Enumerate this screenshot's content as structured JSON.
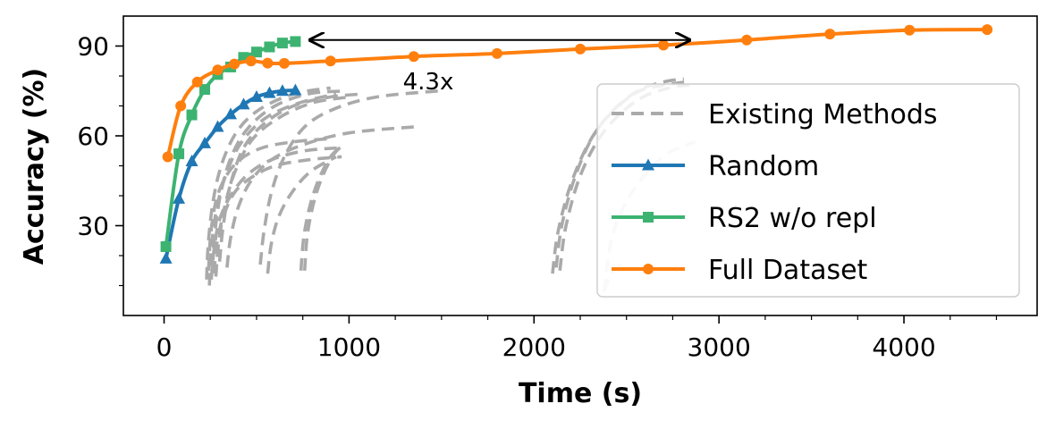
{
  "chart_data": {
    "type": "line",
    "xlabel": "Time (s)",
    "ylabel": "Accuracy (%)",
    "xlim": [
      -220,
      4720
    ],
    "ylim": [
      0,
      100
    ],
    "xticks": [
      "0",
      "1000",
      "2000",
      "3000",
      "4000"
    ],
    "xtick_values": [
      0,
      1000,
      2000,
      3000,
      4000
    ],
    "yticks": [
      "30",
      "60",
      "90"
    ],
    "ytick_values": [
      30,
      60,
      90
    ],
    "legend_position": "right",
    "annotation": {
      "text": "4.3x",
      "from": [
        790,
        92
      ],
      "to": [
        2840,
        92
      ]
    },
    "series": [
      {
        "name": "Full Dataset",
        "color": "#ff7f0e",
        "marker": "circle",
        "x": [
          20,
          90,
          180,
          290,
          380,
          470,
          560,
          650,
          900,
          1350,
          1800,
          2250,
          2700,
          3150,
          3600,
          4030,
          4450
        ],
        "y": [
          53,
          70,
          78,
          82,
          84,
          85,
          84.3,
          84.2,
          85,
          86.5,
          87.5,
          89,
          90.3,
          92,
          94,
          95.3,
          95.5
        ]
      },
      {
        "name": "RS2 w/o repl",
        "color": "#3cb371",
        "marker": "square",
        "x": [
          10,
          80,
          150,
          220,
          290,
          360,
          430,
          500,
          570,
          640,
          710
        ],
        "y": [
          23,
          54,
          67,
          75.5,
          80.5,
          83,
          86.2,
          88,
          89.7,
          91,
          91.5
        ]
      },
      {
        "name": "Random",
        "color": "#1f77b4",
        "marker": "triangle",
        "x": [
          10,
          80,
          150,
          220,
          290,
          360,
          430,
          500,
          570,
          640,
          710
        ],
        "y": [
          19,
          39,
          51.5,
          57.5,
          63,
          67.2,
          70.5,
          73,
          74.3,
          75,
          75.2
        ]
      },
      {
        "name": "Existing Methods",
        "color": "#aaaaaa",
        "marker": "none",
        "curves": [
          {
            "x": [
              230,
              240,
              270,
              320,
              400,
              520,
              700,
              900
            ],
            "y": [
              12,
              25,
              40,
              52,
              62,
              69,
              74,
              76
            ]
          },
          {
            "x": [
              245,
              255,
              285,
              340,
              420,
              550,
              730,
              930
            ],
            "y": [
              10,
              22,
              36,
              48,
              58,
              66,
              71,
              74
            ]
          },
          {
            "x": [
              260,
              275,
              310,
              370,
              460,
              600,
              780,
              980
            ],
            "y": [
              16,
              28,
              42,
              54,
              63,
              70,
              74,
              75
            ]
          },
          {
            "x": [
              280,
              295,
              330,
              390,
              480,
              620,
              800,
              1000
            ],
            "y": [
              13,
              24,
              37,
              49,
              59,
              66,
              71,
              73
            ]
          },
          {
            "x": [
              300,
              320,
              360,
              430,
              540,
              700,
              900,
              1080
            ],
            "y": [
              18,
              30,
              44,
              56,
              64,
              70,
              73,
              74
            ]
          },
          {
            "x": [
              240,
              252,
              280,
              330,
              410,
              530,
              700,
              880
            ],
            "y": [
              15,
              27,
              38,
              46,
              52,
              56,
              58,
              59
            ]
          },
          {
            "x": [
              255,
              270,
              300,
              360,
              450,
              580,
              760,
              950
            ],
            "y": [
              12,
              22,
              32,
              40,
              47,
              52,
              55,
              56
            ]
          },
          {
            "x": [
              270,
              285,
              320,
              380,
              470,
              600,
              780,
              960
            ],
            "y": [
              14,
              24,
              33,
              41,
              46,
              50,
              52,
              53
            ]
          },
          {
            "x": [
              340,
              360,
              400,
              470,
              580,
              750,
              1000,
              1350
            ],
            "y": [
              16,
              26,
              36,
              45,
              52,
              57,
              61,
              63
            ]
          },
          {
            "x": [
              520,
              540,
              580,
              650,
              760,
              920,
              1150,
              1480
            ],
            "y": [
              17,
              28,
              41,
              53,
              63,
              69,
              73,
              75
            ]
          },
          {
            "x": [
              560,
              580,
              620,
              690,
              790,
              930
            ],
            "y": [
              14,
              24,
              33,
              41,
              48,
              53
            ]
          },
          {
            "x": [
              740,
              755,
              790,
              840,
              900,
              950
            ],
            "y": [
              15,
              26,
              37,
              46,
              53,
              56
            ]
          },
          {
            "x": [
              760,
              775,
              810,
              860,
              920,
              970
            ],
            "y": [
              15,
              27,
              38,
              47,
              54,
              57
            ]
          },
          {
            "x": [
              2100,
              2130,
              2200,
              2300,
              2420,
              2560,
              2700,
              2810
            ],
            "y": [
              14,
              28,
              44,
              58,
              68,
              75,
              78,
              79
            ]
          },
          {
            "x": [
              2120,
              2150,
              2220,
              2320,
              2440,
              2570,
              2710,
              2820
            ],
            "y": [
              16,
              30,
              46,
              60,
              69,
              75,
              77,
              78
            ]
          },
          {
            "x": [
              2140,
              2170,
              2240,
              2340,
              2460,
              2590,
              2730,
              2840
            ],
            "y": [
              15,
              29,
              45,
              58,
              67,
              73,
              76,
              77
            ]
          },
          {
            "x": [
              2380,
              2395,
              2430,
              2500,
              2600,
              2720,
              2870
            ],
            "y": [
              8,
              17,
              28,
              38,
              47,
              54,
              58
            ]
          },
          {
            "x": [
              2380,
              2390,
              2420,
              2480
            ],
            "y": [
              8,
              10,
              14,
              18
            ]
          }
        ]
      }
    ]
  }
}
